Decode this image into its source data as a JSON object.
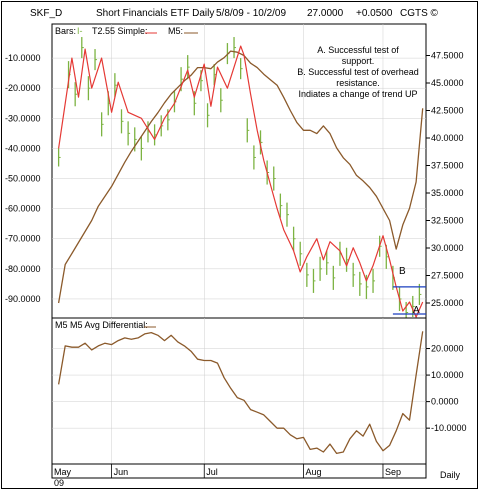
{
  "header": {
    "symbol": "SKF_D",
    "title": "Short Financials ETF Daily",
    "range": "5/8/09 - 10/2/09",
    "last": "27.0000",
    "change": "+0.0500",
    "copyright": "CGTS ©"
  },
  "legend_top": {
    "bars": "Bars:",
    "bars_glyph": "I-",
    "t255": "T2.55 Simple:",
    "m5": "M5:"
  },
  "notes": {
    "line1": "A. Successful test of",
    "line2": "support.",
    "line3": "B.  Successful test of overhead",
    "line4": "resistance.",
    "line5": "Indiates a change of trend UP"
  },
  "markers": {
    "a": "A",
    "b": "B"
  },
  "lower_panel": {
    "title": "M5 M5 Avg Differential:"
  },
  "footer": {
    "daily": "Daily",
    "year": "09"
  },
  "colors": {
    "bars": "#7cb342",
    "trend": "#e53935",
    "m5": "#8b5a2b",
    "blue_lines": "#1a3fbf",
    "grid": "#cfcfcf"
  },
  "chart_data": [
    {
      "type": "ohlc+line",
      "series": [
        {
          "name": "Bars",
          "axis": "left",
          "x": [
            2,
            5,
            7,
            9,
            11,
            13,
            15,
            17,
            19,
            21,
            23,
            25,
            27,
            29,
            31,
            33,
            35,
            37,
            39,
            41,
            43,
            45,
            47,
            49,
            51,
            53,
            55,
            57,
            59,
            61,
            63,
            65,
            67,
            69,
            71,
            73,
            75,
            77,
            79,
            81,
            83,
            85,
            87,
            89,
            91,
            93,
            95,
            97,
            99,
            101,
            103,
            105,
            107,
            109,
            111
          ],
          "high": [
            -40,
            -11,
            -18,
            -3,
            -16,
            -7,
            -28,
            -21,
            -15,
            -27,
            -31,
            -33,
            -36,
            -31,
            -32,
            -29,
            -27,
            -21,
            -13,
            -9,
            -21,
            -14,
            -25,
            -12,
            -20,
            -5,
            -3,
            -10,
            -30,
            -39,
            -34,
            -44,
            -46,
            -55,
            -58,
            -66,
            -71,
            -78,
            -80,
            -76,
            -74,
            -79,
            -71,
            -73,
            -78,
            -81,
            -82,
            -80,
            -69,
            -72,
            -79,
            -86,
            -91,
            -89,
            -85
          ],
          "low": [
            -46,
            -20,
            -26,
            -10,
            -24,
            -14,
            -36,
            -29,
            -23,
            -35,
            -39,
            -41,
            -44,
            -38,
            -39,
            -36,
            -34,
            -28,
            -21,
            -17,
            -29,
            -21,
            -33,
            -19,
            -28,
            -12,
            -10,
            -17,
            -38,
            -47,
            -42,
            -52,
            -54,
            -63,
            -66,
            -74,
            -79,
            -86,
            -88,
            -84,
            -82,
            -87,
            -79,
            -81,
            -86,
            -89,
            -90,
            -88,
            -76,
            -80,
            -87,
            -94,
            -98,
            -96,
            -92
          ]
        },
        {
          "name": "T2.55 Simple",
          "axis": "left",
          "x": [
            2,
            6,
            8,
            10,
            12,
            15,
            18,
            20,
            23,
            27,
            31,
            34,
            37,
            41,
            43,
            46,
            48,
            50,
            53,
            57,
            58,
            60,
            62,
            64,
            66,
            68,
            70,
            73,
            75,
            77,
            80,
            82,
            84,
            87,
            89,
            91,
            93,
            95,
            97,
            100,
            102,
            104,
            106,
            108,
            110,
            112
          ],
          "y": [
            -40,
            -10,
            -23,
            -7,
            -20,
            -10,
            -28,
            -18,
            -28,
            -30,
            -37,
            -30,
            -25,
            -14,
            -23,
            -12,
            -26,
            -13,
            -20,
            -6,
            -9,
            -22,
            -34,
            -44,
            -52,
            -60,
            -67,
            -74,
            -81,
            -76,
            -70,
            -77,
            -71,
            -74,
            -79,
            -73,
            -78,
            -84,
            -79,
            -69,
            -77,
            -86,
            -94,
            -91,
            -96,
            -91
          ]
        },
        {
          "name": "M5",
          "axis": "right",
          "x": [
            2,
            4,
            6,
            8,
            10,
            12,
            14,
            16,
            18,
            20,
            22,
            24,
            26,
            28,
            30,
            32,
            34,
            36,
            38,
            40,
            42,
            44,
            46,
            48,
            50,
            52,
            54,
            56,
            58,
            60,
            62,
            64,
            66,
            68,
            70,
            72,
            74,
            76,
            78,
            80,
            82,
            84,
            86,
            88,
            90,
            92,
            94,
            96,
            98,
            100,
            102,
            104,
            106,
            108,
            110,
            112
          ],
          "y": [
            25.0,
            28.5,
            29.5,
            30.5,
            31.5,
            32.5,
            33.8,
            34.7,
            35.6,
            36.7,
            37.8,
            38.8,
            39.7,
            40.6,
            41.5,
            42.3,
            43.2,
            44.0,
            44.6,
            45.2,
            45.7,
            46.4,
            46.4,
            46.3,
            46.9,
            47.3,
            47.9,
            47.8,
            47.5,
            46.8,
            46.4,
            45.8,
            45.3,
            44.8,
            43.7,
            42.5,
            41.4,
            40.7,
            40.7,
            40.4,
            41.1,
            40.4,
            39.1,
            38.2,
            37.6,
            36.6,
            36.1,
            35.5,
            34.7,
            33.6,
            32.5,
            29.9,
            32.1,
            33.6,
            36.0,
            42.7
          ]
        }
      ],
      "ylim_left": [
        -95,
        0
      ],
      "ylim_right": [
        24.0,
        50.0
      ],
      "yticks_left": [
        "-10.0000",
        "-20.0000",
        "-30.0000",
        "-40.0000",
        "-50.0000",
        "-60.0000",
        "-70.0000",
        "-80.0000",
        "-90.0000"
      ],
      "yticks_right": [
        "47.5000",
        "45.0000",
        "42.5000",
        "40.0000",
        "37.5000",
        "35.0000",
        "32.5000",
        "30.0000",
        "27.5000",
        "25.0000"
      ],
      "hlines": [
        {
          "label": "B",
          "y": -86
        },
        {
          "label": "A",
          "y": -95
        }
      ]
    },
    {
      "type": "line",
      "title": "M5 M5 Avg Differential:",
      "series": [
        {
          "x": [
            2,
            4,
            6,
            8,
            10,
            12,
            14,
            16,
            18,
            20,
            22,
            24,
            26,
            28,
            30,
            32,
            34,
            36,
            38,
            40,
            42,
            44,
            46,
            48,
            50,
            52,
            54,
            56,
            58,
            60,
            62,
            64,
            66,
            68,
            70,
            72,
            74,
            76,
            78,
            80,
            82,
            84,
            86,
            88,
            90,
            92,
            94,
            96,
            98,
            100,
            102,
            104,
            106,
            108,
            110,
            112
          ],
          "y": [
            6.5,
            21.0,
            20.5,
            20.5,
            22.0,
            19.5,
            21.0,
            22.0,
            21.5,
            23.0,
            24.0,
            23.5,
            24.0,
            25.5,
            26.0,
            25.0,
            23.0,
            25.0,
            22.5,
            21.0,
            19.0,
            16.0,
            15.5,
            15.5,
            14.5,
            9.0,
            5.0,
            1.5,
            0.5,
            -3.0,
            -4.0,
            -5.0,
            -7.5,
            -10.0,
            -10.0,
            -12.5,
            -14.0,
            -13.5,
            -18.0,
            -17.5,
            -19.0,
            -16.0,
            -19.5,
            -19.0,
            -14.0,
            -11.0,
            -13.0,
            -8.5,
            -15.0,
            -18.5,
            -16.5,
            -11.0,
            -4.5,
            -7.0,
            10.0,
            26.5
          ]
        }
      ],
      "yticks": [
        "20.0000",
        "10.0000",
        "0.0000",
        "-10.0000"
      ],
      "ylim": [
        -22,
        30
      ]
    }
  ],
  "x_axis": {
    "labels": [
      {
        "text": "May",
        "x": 0
      },
      {
        "text": "Jun",
        "x": 18
      },
      {
        "text": "Jul",
        "x": 46
      },
      {
        "text": "Aug",
        "x": 76
      },
      {
        "text": "Sep",
        "x": 100
      }
    ],
    "range": [
      0,
      113
    ]
  }
}
